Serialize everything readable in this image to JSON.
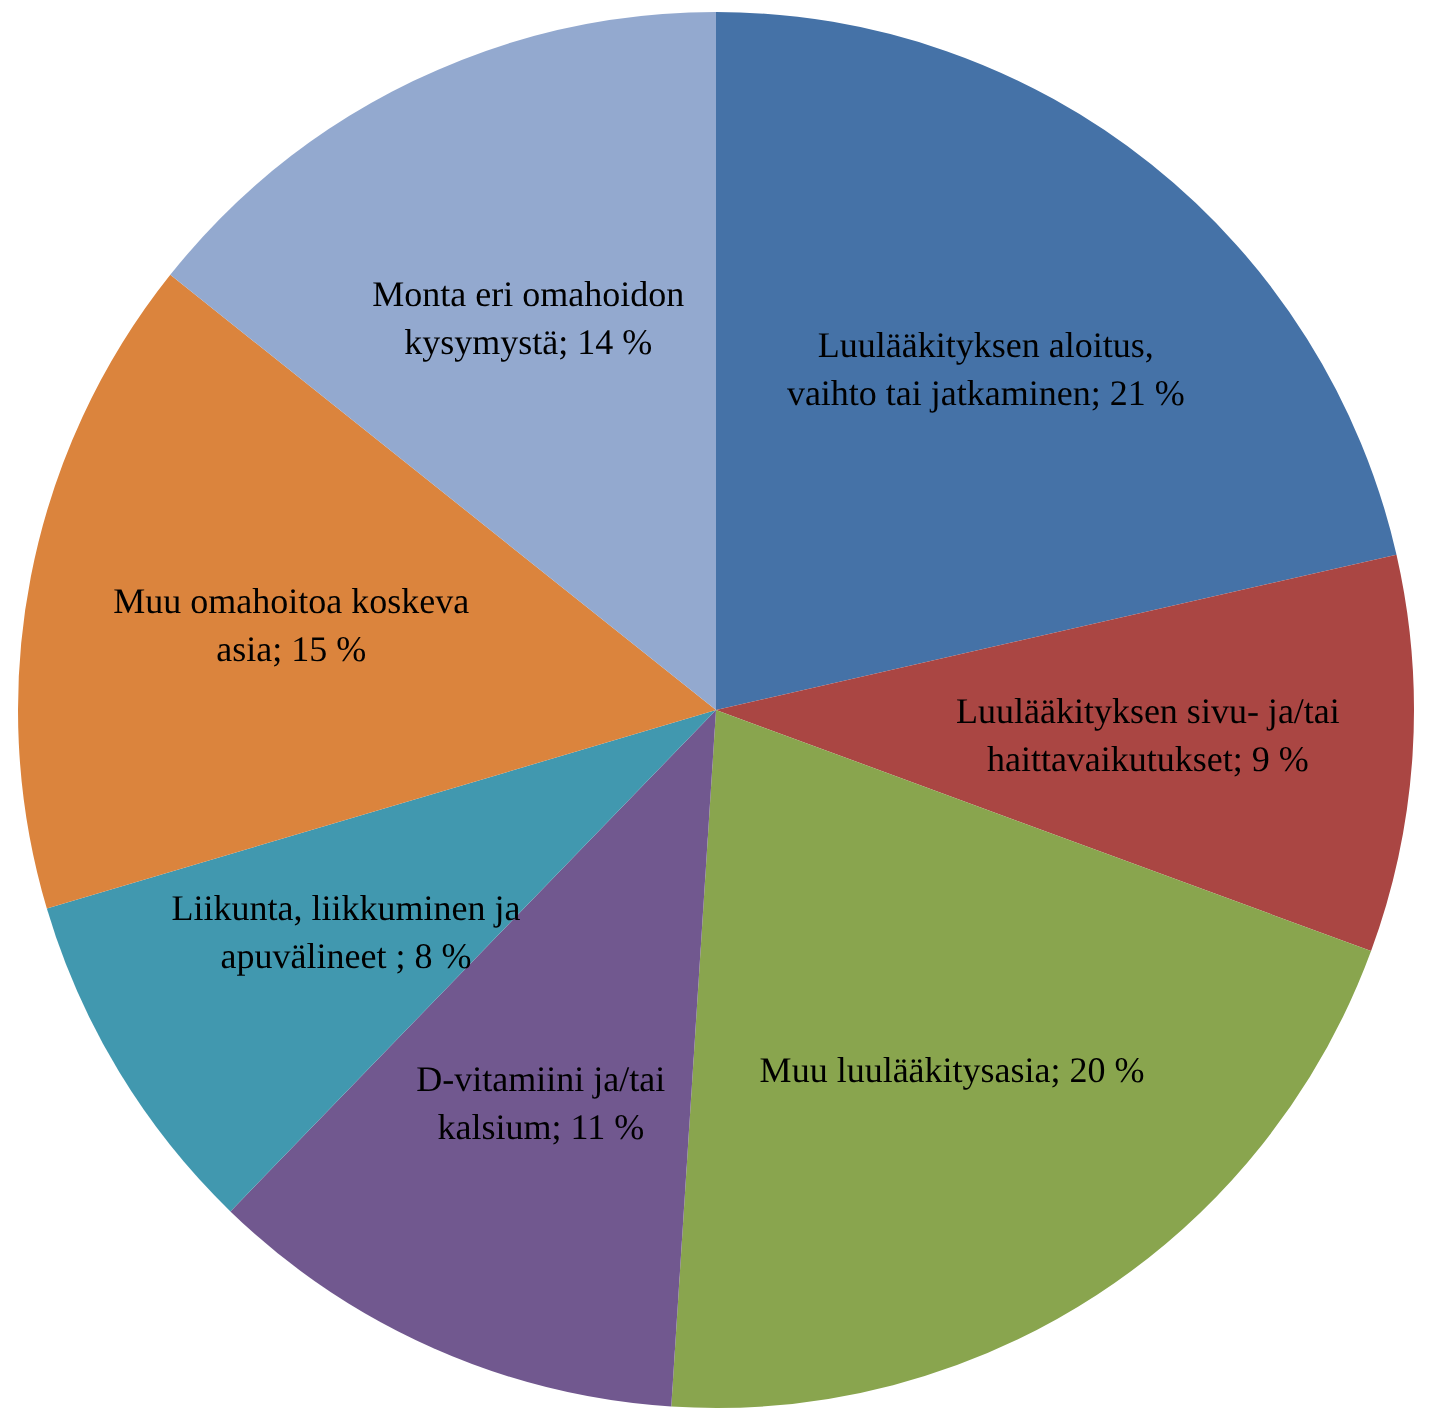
{
  "chart_data": {
    "type": "pie",
    "categories": [
      "Luulääkityksen aloitus, vaihto tai jatkaminen",
      "Luulääkityksen sivu- ja/tai haittavaikutukset",
      "Muu luulääkitysasia",
      "D-vitamiini ja/tai kalsium",
      "Liikunta, liikkuminen ja apuvälineet ",
      "Muu omahoitoa koskeva asia",
      "Monta eri omahoidon kysymystä"
    ],
    "values": [
      21,
      9,
      20,
      11,
      8,
      15,
      14
    ],
    "value_labels": [
      "21 %",
      "9 %",
      "20 %",
      "11 %",
      "8 %",
      "15 %",
      "14 %"
    ],
    "colors": [
      "#4572a7",
      "#aa4643",
      "#89a54e",
      "#71588f",
      "#4198af",
      "#db843d",
      "#93a9cf"
    ],
    "legend": false
  }
}
